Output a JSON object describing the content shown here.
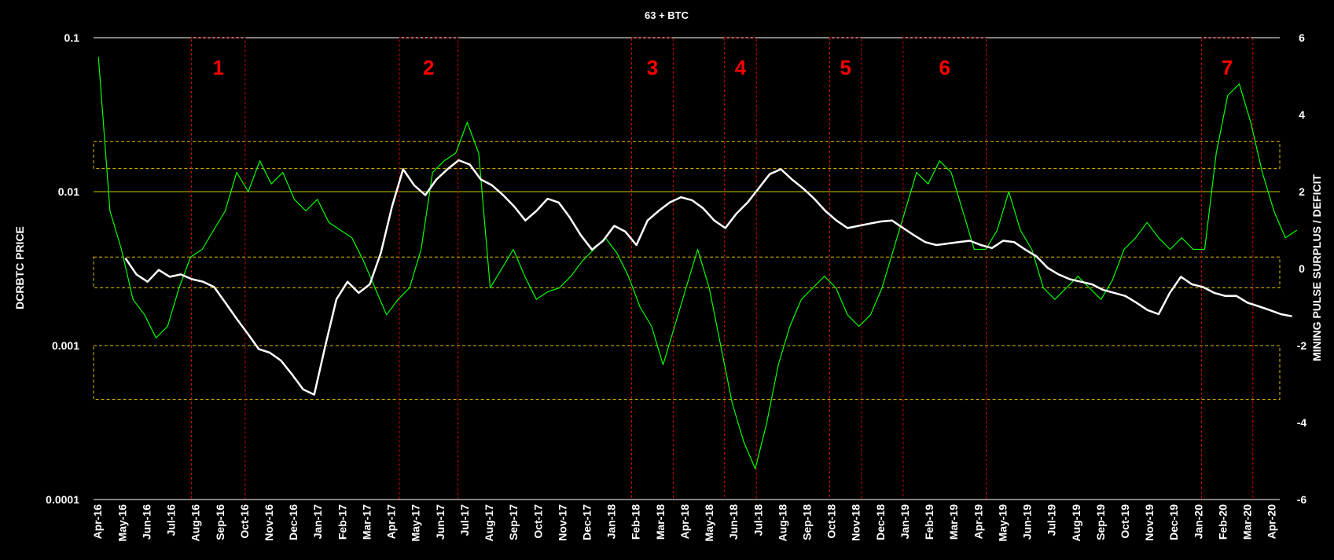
{
  "chart_data": {
    "type": "line",
    "title": "63 + BTC",
    "ylabel_left": "DCRBTC PRICE",
    "ylabel_right": "MINING PULSE SURPLUS / DEFICIT",
    "left_axis": {
      "scale": "log",
      "ylim": [
        0.0001,
        0.1
      ],
      "ticks": [
        "0.1",
        "0.01",
        "0.001",
        "0.0001"
      ]
    },
    "right_axis": {
      "scale": "linear",
      "ylim": [
        -6,
        6
      ],
      "ticks": [
        "6",
        "4",
        "2",
        "0",
        "-2",
        "-4",
        "-6"
      ]
    },
    "x_tick_labels": [
      "Apr-16",
      "May-16",
      "Jun-16",
      "Jul-16",
      "Aug-16",
      "Sep-16",
      "Oct-16",
      "Nov-16",
      "Dec-16",
      "Jan-17",
      "Feb-17",
      "Mar-17",
      "Apr-17",
      "May-17",
      "Jun-17",
      "Jul-17",
      "Aug-17",
      "Sep-17",
      "Oct-17",
      "Nov-17",
      "Dec-17",
      "Jan-18",
      "Feb-18",
      "Mar-18",
      "Apr-18",
      "May-18",
      "Jun-18",
      "Jul-18",
      "Aug-18",
      "Sep-18",
      "Oct-18",
      "Nov-18",
      "Dec-18",
      "Jan-19",
      "Feb-19",
      "Mar-19",
      "Apr-19",
      "May-19",
      "Jun-19",
      "Jul-19",
      "Aug-19",
      "Sep-19",
      "Oct-19",
      "Nov-19",
      "Dec-19",
      "Jan-20",
      "Feb-20",
      "Mar-20",
      "Apr-20"
    ],
    "grid_lines": [
      0.1,
      0.01
    ],
    "series": [
      {
        "axis": "left",
        "color": "#ffffff",
        "x_start_index": 1.1,
        "x_end_index": 48.8,
        "values": [
          0.0037,
          0.0029,
          0.0026,
          0.0031,
          0.0028,
          0.0029,
          0.0027,
          0.0026,
          0.0024,
          0.0019,
          0.0015,
          0.0012,
          0.00095,
          0.0009,
          0.0008,
          0.00065,
          0.00052,
          0.00048,
          0.001,
          0.002,
          0.0026,
          0.0022,
          0.0025,
          0.004,
          0.008,
          0.014,
          0.011,
          0.0095,
          0.012,
          0.014,
          0.016,
          0.015,
          0.012,
          0.011,
          0.0095,
          0.008,
          0.0065,
          0.0075,
          0.009,
          0.0085,
          0.0068,
          0.0052,
          0.0042,
          0.0048,
          0.006,
          0.0055,
          0.0045,
          0.0065,
          0.0075,
          0.0085,
          0.0092,
          0.0088,
          0.0078,
          0.0065,
          0.0058,
          0.0072,
          0.0085,
          0.0105,
          0.013,
          0.014,
          0.012,
          0.0105,
          0.009,
          0.0075,
          0.0065,
          0.0058,
          0.006,
          0.0062,
          0.0064,
          0.0065,
          0.0058,
          0.0052,
          0.0047,
          0.0045,
          0.0046,
          0.0047,
          0.0048,
          0.0045,
          0.0043,
          0.0048,
          0.0047,
          0.0042,
          0.0038,
          0.0032,
          0.0029,
          0.0027,
          0.0026,
          0.0025,
          0.0023,
          0.0022,
          0.0021,
          0.0019,
          0.0017,
          0.0016,
          0.0022,
          0.0028,
          0.0025,
          0.0024,
          0.0022,
          0.0021,
          0.0021,
          0.0019,
          0.0018,
          0.0017,
          0.0016,
          0.00155
        ]
      },
      {
        "axis": "right",
        "color": "#00ff00",
        "x_start_index": 0,
        "x_end_index": 49,
        "values": [
          5.5,
          1.5,
          0.5,
          -0.8,
          -1.2,
          -1.8,
          -1.5,
          -0.5,
          0.3,
          0.5,
          1.0,
          1.5,
          2.5,
          2.0,
          2.8,
          2.2,
          2.5,
          1.8,
          1.5,
          1.8,
          1.2,
          1.0,
          0.8,
          0.2,
          -0.5,
          -1.2,
          -0.8,
          -0.5,
          0.5,
          2.5,
          2.8,
          3.0,
          3.8,
          3.0,
          -0.5,
          0.0,
          0.5,
          -0.2,
          -0.8,
          -0.6,
          -0.5,
          -0.2,
          0.2,
          0.5,
          0.8,
          0.4,
          -0.2,
          -1.0,
          -1.5,
          -2.5,
          -1.5,
          -0.5,
          0.5,
          -0.5,
          -2.0,
          -3.5,
          -4.5,
          -5.2,
          -4.0,
          -2.5,
          -1.5,
          -0.8,
          -0.5,
          -0.2,
          -0.5,
          -1.2,
          -1.5,
          -1.2,
          -0.5,
          0.5,
          1.5,
          2.5,
          2.2,
          2.8,
          2.5,
          1.5,
          0.5,
          0.5,
          1.0,
          2.0,
          1.0,
          0.5,
          -0.5,
          -0.8,
          -0.5,
          -0.2,
          -0.5,
          -0.8,
          -0.3,
          0.5,
          0.8,
          1.2,
          0.8,
          0.5,
          0.8,
          0.5,
          0.5,
          3.0,
          4.5,
          4.8,
          3.8,
          2.5,
          1.5,
          0.8,
          1.0
        ]
      }
    ],
    "zones": [
      {
        "label": "1",
        "x_start_index": 3.8,
        "x_end_index": 6.0
      },
      {
        "label": "2",
        "x_start_index": 12.3,
        "x_end_index": 14.7
      },
      {
        "label": "3",
        "x_start_index": 21.8,
        "x_end_index": 23.5
      },
      {
        "label": "4",
        "x_start_index": 25.6,
        "x_end_index": 26.9
      },
      {
        "label": "5",
        "x_start_index": 29.9,
        "x_end_index": 31.2
      },
      {
        "label": "6",
        "x_start_index": 32.9,
        "x_end_index": 36.3
      },
      {
        "label": "7",
        "x_start_index": 45.1,
        "x_end_index": 47.2
      }
    ],
    "yellow_bands_right_axis": [
      [
        2.6,
        3.3
      ],
      [
        -0.5,
        0.3
      ],
      [
        -3.4,
        -2.0
      ]
    ]
  }
}
